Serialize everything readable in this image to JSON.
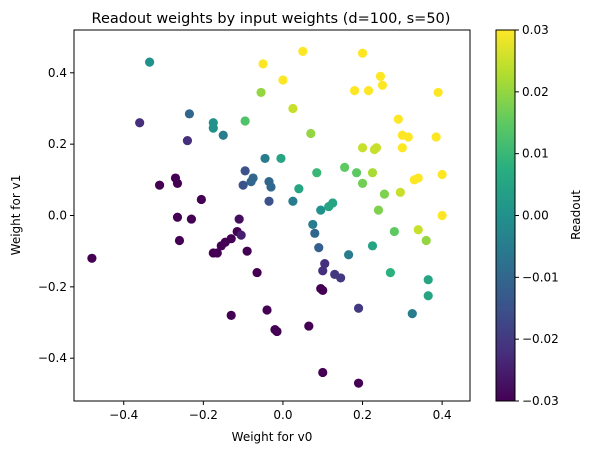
{
  "chart_data": {
    "type": "scatter",
    "title": "Readout weights by input weights  (d=100, s=50)",
    "xlabel": "Weight for v0",
    "ylabel": "Weight for v1",
    "xlim": [
      -0.525,
      0.47
    ],
    "ylim": [
      -0.52,
      0.52
    ],
    "xticks": [
      -0.4,
      -0.2,
      0.0,
      0.2,
      0.4
    ],
    "xtick_labels": [
      "−0.4",
      "−0.2",
      "0.0",
      "0.2",
      "0.4"
    ],
    "yticks": [
      -0.4,
      -0.2,
      0.0,
      0.2,
      0.4
    ],
    "ytick_labels": [
      "−0.4",
      "−0.2",
      "0.0",
      "0.2",
      "0.4"
    ],
    "grid": false,
    "colorbar": {
      "label": "Readout",
      "colormap": "viridis",
      "range": [
        -0.03,
        0.03
      ],
      "ticks": [
        -0.03,
        -0.02,
        -0.01,
        0.0,
        0.01,
        0.02,
        0.03
      ],
      "tick_labels": [
        "−0.03",
        "−0.02",
        "−0.01",
        "0.00",
        "0.01",
        "0.02",
        "0.03"
      ]
    },
    "points": [
      {
        "x": -0.48,
        "y": -0.12,
        "c": -0.03
      },
      {
        "x": -0.335,
        "y": 0.43,
        "c": 0.0
      },
      {
        "x": -0.36,
        "y": 0.26,
        "c": -0.022
      },
      {
        "x": -0.31,
        "y": 0.085,
        "c": -0.03
      },
      {
        "x": -0.27,
        "y": 0.105,
        "c": -0.03
      },
      {
        "x": -0.265,
        "y": 0.09,
        "c": -0.03
      },
      {
        "x": -0.265,
        "y": -0.005,
        "c": -0.03
      },
      {
        "x": -0.26,
        "y": -0.07,
        "c": -0.03
      },
      {
        "x": -0.235,
        "y": 0.285,
        "c": -0.01
      },
      {
        "x": -0.24,
        "y": 0.21,
        "c": -0.022
      },
      {
        "x": -0.23,
        "y": -0.01,
        "c": -0.03
      },
      {
        "x": -0.205,
        "y": 0.045,
        "c": -0.03
      },
      {
        "x": -0.175,
        "y": 0.26,
        "c": 0.0
      },
      {
        "x": -0.175,
        "y": 0.245,
        "c": 0.0
      },
      {
        "x": -0.175,
        "y": -0.105,
        "c": -0.03
      },
      {
        "x": -0.165,
        "y": -0.105,
        "c": -0.03
      },
      {
        "x": -0.155,
        "y": -0.085,
        "c": -0.03
      },
      {
        "x": -0.15,
        "y": 0.225,
        "c": -0.005
      },
      {
        "x": -0.145,
        "y": -0.075,
        "c": -0.03
      },
      {
        "x": -0.13,
        "y": -0.065,
        "c": -0.03
      },
      {
        "x": -0.13,
        "y": -0.28,
        "c": -0.03
      },
      {
        "x": -0.115,
        "y": -0.045,
        "c": -0.03
      },
      {
        "x": -0.11,
        "y": -0.01,
        "c": -0.028
      },
      {
        "x": -0.105,
        "y": -0.055,
        "c": -0.025
      },
      {
        "x": -0.095,
        "y": 0.265,
        "c": 0.013
      },
      {
        "x": -0.095,
        "y": 0.125,
        "c": -0.015
      },
      {
        "x": -0.1,
        "y": 0.085,
        "c": -0.015
      },
      {
        "x": -0.09,
        "y": -0.1,
        "c": -0.03
      },
      {
        "x": -0.08,
        "y": 0.095,
        "c": -0.01
      },
      {
        "x": -0.075,
        "y": 0.105,
        "c": -0.01
      },
      {
        "x": -0.065,
        "y": -0.16,
        "c": -0.03
      },
      {
        "x": -0.055,
        "y": 0.345,
        "c": 0.02
      },
      {
        "x": -0.05,
        "y": 0.425,
        "c": 0.03
      },
      {
        "x": -0.045,
        "y": 0.16,
        "c": -0.005
      },
      {
        "x": -0.04,
        "y": -0.265,
        "c": -0.03
      },
      {
        "x": -0.035,
        "y": 0.04,
        "c": -0.015
      },
      {
        "x": -0.035,
        "y": 0.095,
        "c": -0.01
      },
      {
        "x": -0.03,
        "y": 0.08,
        "c": -0.01
      },
      {
        "x": -0.02,
        "y": -0.32,
        "c": -0.03
      },
      {
        "x": -0.015,
        "y": -0.325,
        "c": -0.03
      },
      {
        "x": -0.005,
        "y": 0.16,
        "c": 0.005
      },
      {
        "x": 0.0,
        "y": 0.38,
        "c": 0.03
      },
      {
        "x": 0.025,
        "y": 0.3,
        "c": 0.025
      },
      {
        "x": 0.025,
        "y": 0.04,
        "c": -0.005
      },
      {
        "x": 0.04,
        "y": 0.075,
        "c": 0.005
      },
      {
        "x": 0.05,
        "y": 0.46,
        "c": 0.03
      },
      {
        "x": 0.065,
        "y": -0.31,
        "c": -0.03
      },
      {
        "x": 0.07,
        "y": 0.23,
        "c": 0.02
      },
      {
        "x": 0.075,
        "y": -0.025,
        "c": -0.005
      },
      {
        "x": 0.08,
        "y": -0.05,
        "c": -0.01
      },
      {
        "x": 0.085,
        "y": 0.12,
        "c": 0.01
      },
      {
        "x": 0.095,
        "y": 0.015,
        "c": 0.0
      },
      {
        "x": 0.09,
        "y": -0.09,
        "c": -0.012
      },
      {
        "x": 0.095,
        "y": -0.205,
        "c": -0.03
      },
      {
        "x": 0.1,
        "y": -0.21,
        "c": -0.03
      },
      {
        "x": 0.1,
        "y": -0.155,
        "c": -0.022
      },
      {
        "x": 0.105,
        "y": -0.135,
        "c": -0.022
      },
      {
        "x": 0.1,
        "y": -0.44,
        "c": -0.03
      },
      {
        "x": 0.115,
        "y": 0.025,
        "c": 0.005
      },
      {
        "x": 0.125,
        "y": 0.035,
        "c": 0.005
      },
      {
        "x": 0.13,
        "y": -0.165,
        "c": -0.02
      },
      {
        "x": 0.145,
        "y": -0.175,
        "c": -0.02
      },
      {
        "x": 0.155,
        "y": 0.135,
        "c": 0.015
      },
      {
        "x": 0.165,
        "y": -0.11,
        "c": -0.005
      },
      {
        "x": 0.18,
        "y": 0.35,
        "c": 0.03
      },
      {
        "x": 0.185,
        "y": 0.12,
        "c": 0.015
      },
      {
        "x": 0.19,
        "y": -0.26,
        "c": -0.02
      },
      {
        "x": 0.19,
        "y": -0.47,
        "c": -0.03
      },
      {
        "x": 0.2,
        "y": 0.455,
        "c": 0.03
      },
      {
        "x": 0.2,
        "y": 0.19,
        "c": 0.025
      },
      {
        "x": 0.2,
        "y": 0.09,
        "c": 0.017
      },
      {
        "x": 0.215,
        "y": 0.35,
        "c": 0.03
      },
      {
        "x": 0.225,
        "y": 0.12,
        "c": 0.022
      },
      {
        "x": 0.23,
        "y": 0.185,
        "c": 0.025
      },
      {
        "x": 0.235,
        "y": 0.19,
        "c": 0.025
      },
      {
        "x": 0.225,
        "y": -0.085,
        "c": 0.005
      },
      {
        "x": 0.24,
        "y": 0.015,
        "c": 0.018
      },
      {
        "x": 0.245,
        "y": 0.39,
        "c": 0.03
      },
      {
        "x": 0.25,
        "y": 0.365,
        "c": 0.03
      },
      {
        "x": 0.255,
        "y": 0.06,
        "c": 0.018
      },
      {
        "x": 0.27,
        "y": -0.16,
        "c": 0.008
      },
      {
        "x": 0.28,
        "y": -0.045,
        "c": 0.015
      },
      {
        "x": 0.29,
        "y": 0.27,
        "c": 0.03
      },
      {
        "x": 0.295,
        "y": 0.065,
        "c": 0.025
      },
      {
        "x": 0.3,
        "y": 0.225,
        "c": 0.03
      },
      {
        "x": 0.3,
        "y": 0.19,
        "c": 0.03
      },
      {
        "x": 0.315,
        "y": 0.22,
        "c": 0.03
      },
      {
        "x": 0.325,
        "y": -0.275,
        "c": -0.005
      },
      {
        "x": 0.33,
        "y": 0.1,
        "c": 0.03
      },
      {
        "x": 0.34,
        "y": 0.105,
        "c": 0.03
      },
      {
        "x": 0.34,
        "y": -0.04,
        "c": 0.025
      },
      {
        "x": 0.36,
        "y": -0.07,
        "c": 0.02
      },
      {
        "x": 0.365,
        "y": -0.18,
        "c": 0.005
      },
      {
        "x": 0.365,
        "y": -0.225,
        "c": 0.005
      },
      {
        "x": 0.385,
        "y": 0.22,
        "c": 0.03
      },
      {
        "x": 0.39,
        "y": 0.345,
        "c": 0.03
      },
      {
        "x": 0.4,
        "y": 0.115,
        "c": 0.03
      },
      {
        "x": 0.4,
        "y": 0.0,
        "c": 0.03
      }
    ]
  }
}
